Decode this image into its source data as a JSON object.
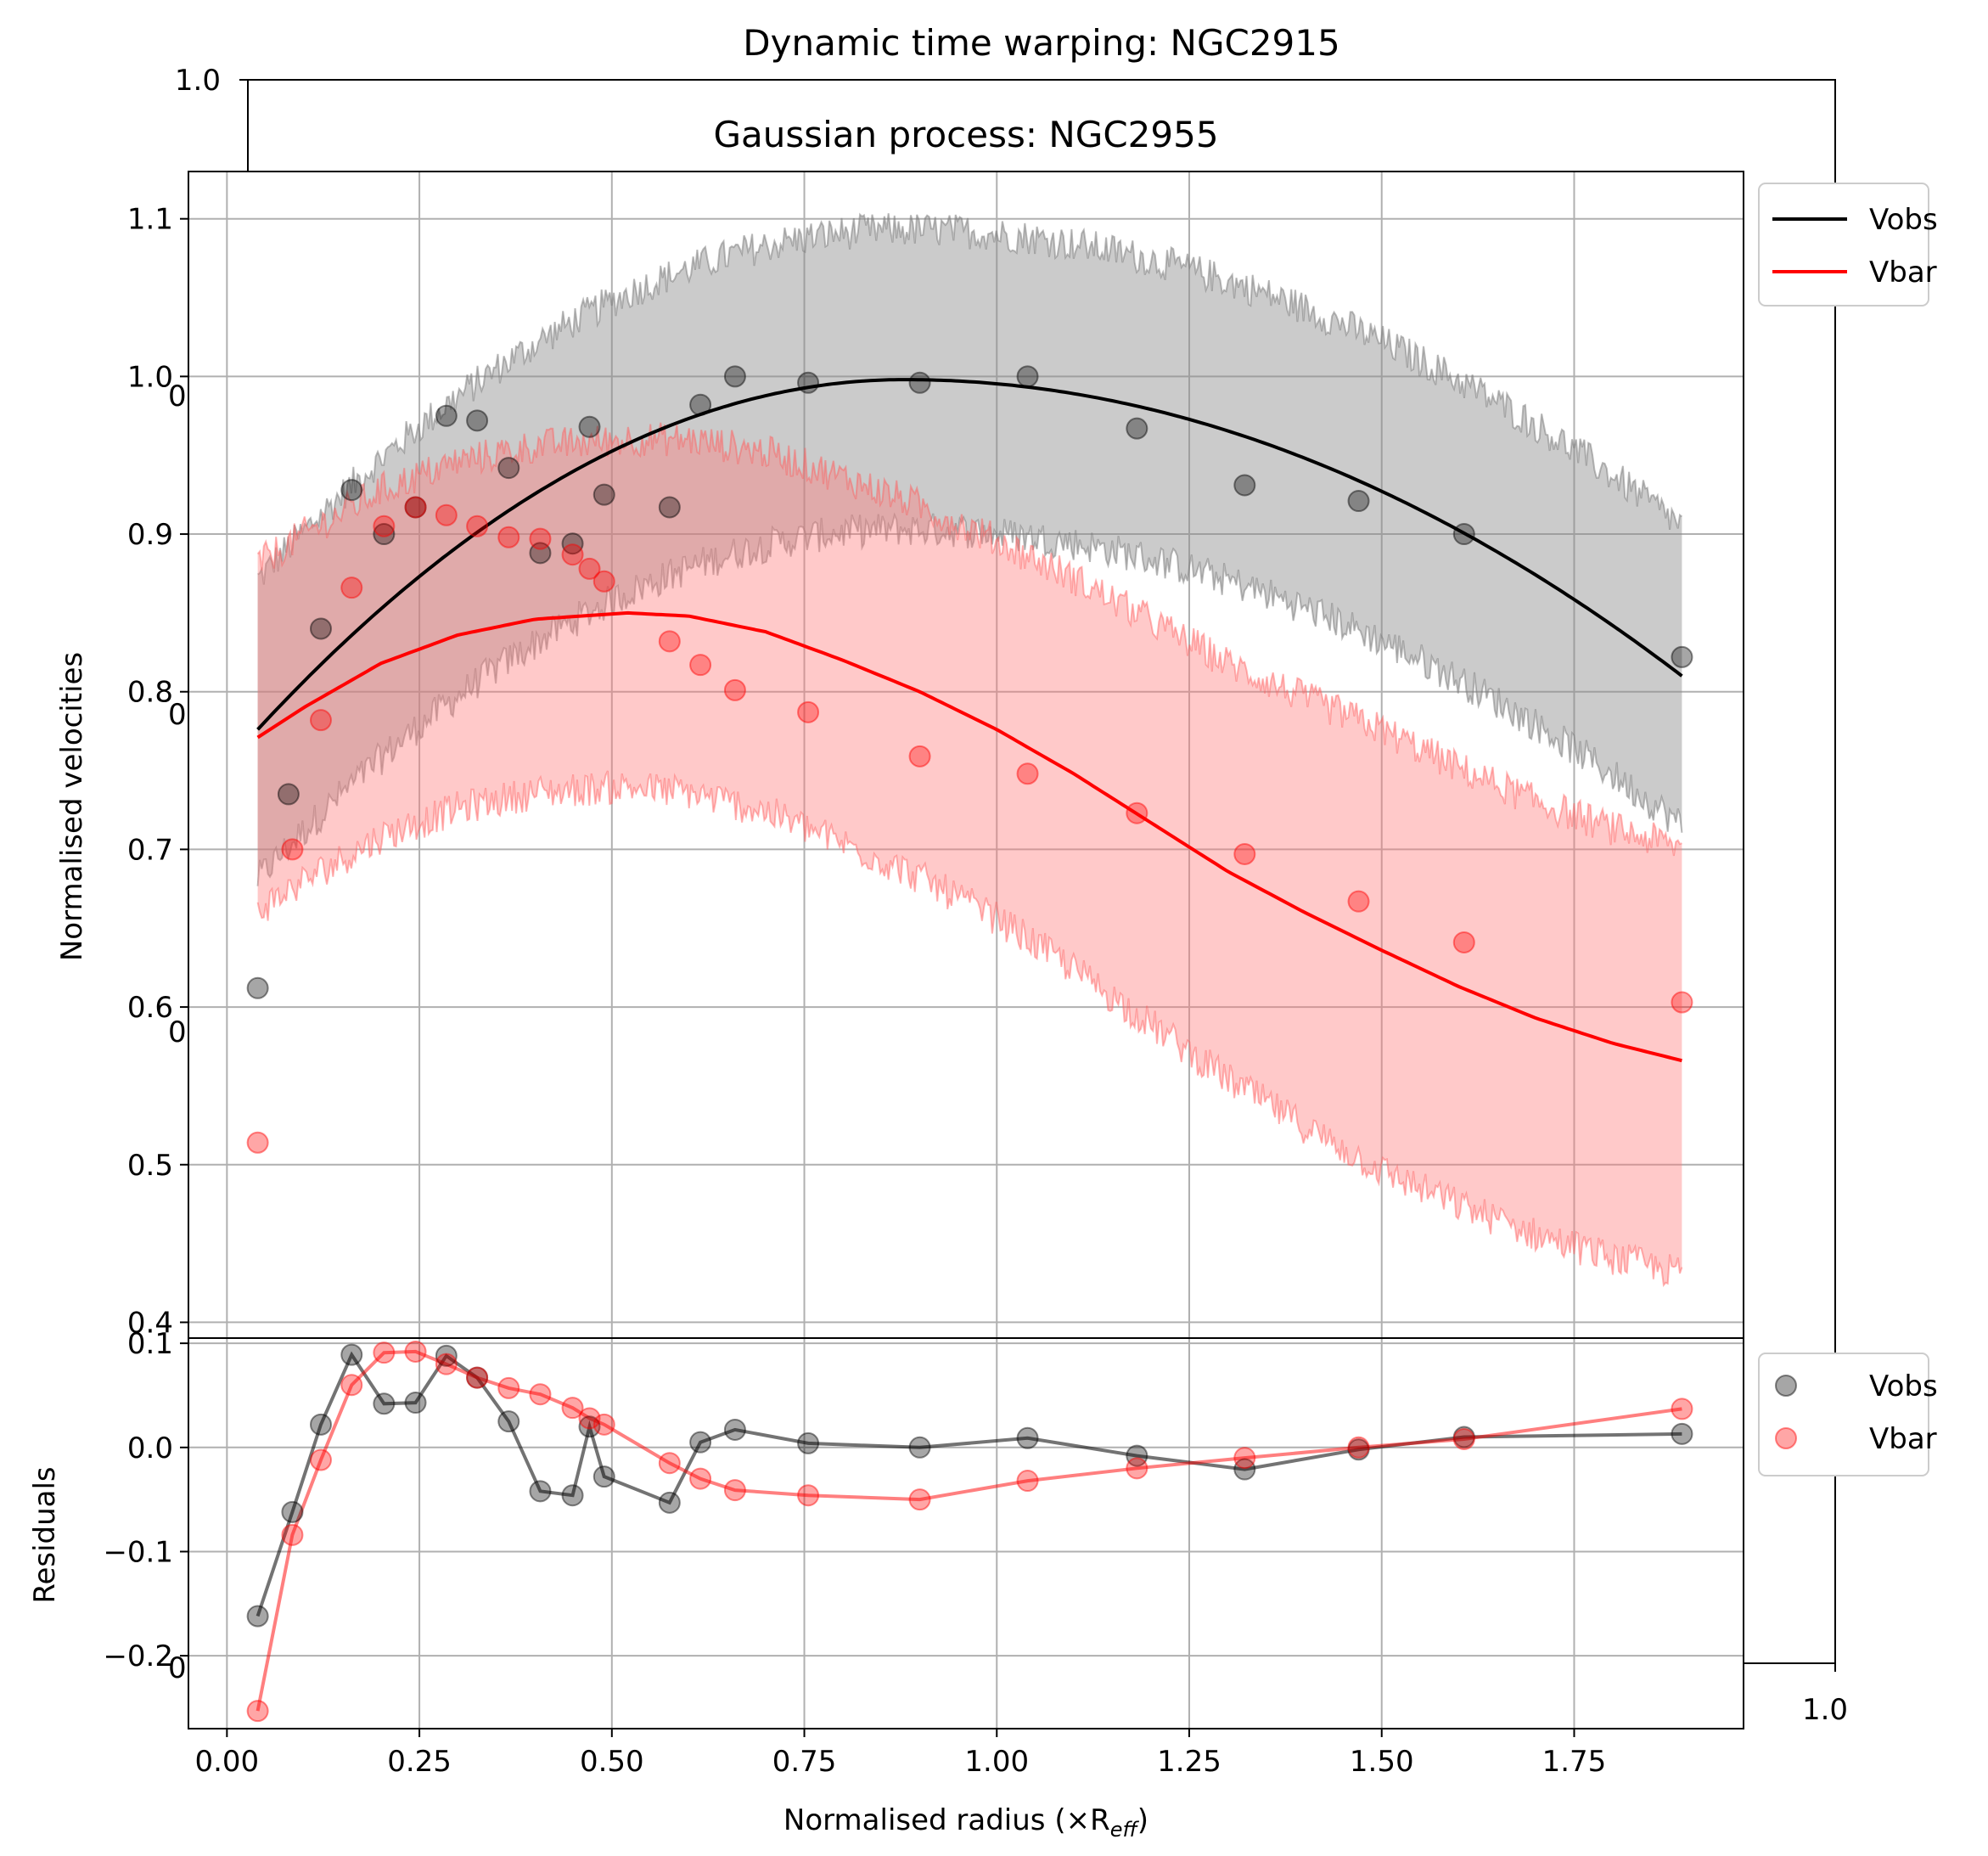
{
  "chart_data": [
    {
      "type": "frame",
      "title": "Dynamic time warping: NGC2915",
      "left_tick_top": "1.0",
      "right_tick_bottom": "1.0",
      "partial_left_ticks": [
        "0",
        "0",
        "0",
        "0"
      ]
    },
    {
      "type": "line",
      "title": "Gaussian process: NGC2955",
      "xlabel": "",
      "ylabel": "Normalised velocities",
      "xlim": [
        -0.05,
        1.97
      ],
      "ylim": [
        0.39,
        1.13
      ],
      "xticks": [
        0.0,
        0.25,
        0.5,
        0.75,
        1.0,
        1.25,
        1.5,
        1.75
      ],
      "yticks": [
        0.4,
        0.5,
        0.6,
        0.7,
        0.8,
        0.9,
        1.0,
        1.1
      ],
      "ytick_labels": [
        "0.4",
        "0.5",
        "0.6",
        "0.7",
        "0.8",
        "0.9",
        "1.0",
        "1.1"
      ],
      "grid": true,
      "legend": {
        "placement": "outside-top-right",
        "entries": [
          "Vobs",
          "Vbar"
        ]
      },
      "colors": {
        "obs": "#000000",
        "bar": "#ff0000",
        "obs_band": "#c9c9c9",
        "bar_band": "#ffc9c9"
      },
      "series": [
        {
          "name": "Vobs",
          "x": [
            0.04,
            0.08,
            0.122,
            0.162,
            0.204,
            0.245,
            0.285,
            0.325,
            0.366,
            0.407,
            0.449,
            0.471,
            0.49,
            0.575,
            0.615,
            0.66,
            0.755,
            0.9,
            1.04,
            1.182,
            1.322,
            1.47,
            1.607,
            1.89
          ],
          "y": [
            0.612,
            0.735,
            0.84,
            0.928,
            0.9,
            0.917,
            0.975,
            0.972,
            0.942,
            0.888,
            0.894,
            0.968,
            0.925,
            0.917,
            0.982,
            1.0,
            0.996,
            0.996,
            1.0,
            0.967,
            0.931,
            0.921,
            0.9,
            0.822
          ],
          "fit": {
            "x0": 0.04,
            "y0": 0.776,
            "xpeak": 0.88,
            "ypeak": 0.998,
            "x1": 1.89,
            "y1": 0.81
          },
          "band_halfwidth": 0.095
        },
        {
          "name": "Vbar",
          "x": [
            0.04,
            0.085,
            0.122,
            0.162,
            0.204,
            0.245,
            0.285,
            0.325,
            0.366,
            0.407,
            0.449,
            0.471,
            0.49,
            0.575,
            0.615,
            0.66,
            0.755,
            0.9,
            1.04,
            1.182,
            1.322,
            1.47,
            1.607,
            1.89
          ],
          "y": [
            0.514,
            0.7,
            0.782,
            0.866,
            0.905,
            0.917,
            0.912,
            0.905,
            0.898,
            0.897,
            0.887,
            0.878,
            0.87,
            0.832,
            0.817,
            0.801,
            0.787,
            0.759,
            0.748,
            0.723,
            0.697,
            0.667,
            0.641,
            0.603
          ],
          "fit": [
            [
              0.04,
              0.771
            ],
            [
              0.1,
              0.79
            ],
            [
              0.2,
              0.818
            ],
            [
              0.3,
              0.836
            ],
            [
              0.4,
              0.846
            ],
            [
              0.52,
              0.85
            ],
            [
              0.6,
              0.848
            ],
            [
              0.7,
              0.838
            ],
            [
              0.8,
              0.82
            ],
            [
              0.9,
              0.8
            ],
            [
              1.0,
              0.776
            ],
            [
              1.1,
              0.748
            ],
            [
              1.2,
              0.717
            ],
            [
              1.3,
              0.686
            ],
            [
              1.4,
              0.66
            ],
            [
              1.5,
              0.636
            ],
            [
              1.6,
              0.613
            ],
            [
              1.7,
              0.593
            ],
            [
              1.8,
              0.577
            ],
            [
              1.89,
              0.566
            ]
          ],
          "band_halfwidth": [
            [
              0.04,
              0.11
            ],
            [
              0.5,
              0.11
            ],
            [
              1.0,
              0.12
            ],
            [
              1.5,
              0.14
            ],
            [
              1.89,
              0.135
            ]
          ]
        }
      ]
    },
    {
      "type": "line",
      "title": "",
      "xlabel": "Normalised radius (×R",
      "xlabel_sub": "eff",
      "xlabel_close": ")",
      "ylabel": "Residuals",
      "xlim": [
        -0.05,
        1.97
      ],
      "ylim": [
        -0.27,
        0.105
      ],
      "xticks": [
        0.0,
        0.25,
        0.5,
        0.75,
        1.0,
        1.25,
        1.5,
        1.75
      ],
      "xtick_labels": [
        "0.00",
        "0.25",
        "0.50",
        "0.75",
        "1.00",
        "1.25",
        "1.50",
        "1.75"
      ],
      "yticks": [
        -0.2,
        -0.1,
        0.0,
        0.1
      ],
      "ytick_labels": [
        "−0.2",
        "−0.1",
        "0.0",
        "0.1"
      ],
      "grid": true,
      "legend": {
        "placement": "outside-top-right",
        "entries": [
          "Vobs",
          "Vbar"
        ]
      },
      "series": [
        {
          "name": "Vobs",
          "x": [
            0.04,
            0.085,
            0.122,
            0.162,
            0.204,
            0.245,
            0.285,
            0.325,
            0.366,
            0.407,
            0.449,
            0.471,
            0.49,
            0.575,
            0.615,
            0.66,
            0.755,
            0.9,
            1.04,
            1.182,
            1.322,
            1.47,
            1.607,
            1.89
          ],
          "y": [
            -0.162,
            -0.062,
            0.022,
            0.089,
            0.042,
            0.043,
            0.088,
            0.067,
            0.025,
            -0.042,
            -0.046,
            0.02,
            -0.028,
            -0.053,
            0.005,
            0.017,
            0.004,
            0.0,
            0.009,
            -0.008,
            -0.021,
            -0.002,
            0.01,
            0.013
          ]
        },
        {
          "name": "Vbar",
          "x": [
            0.04,
            0.085,
            0.122,
            0.162,
            0.204,
            0.245,
            0.285,
            0.325,
            0.366,
            0.407,
            0.449,
            0.471,
            0.49,
            0.575,
            0.615,
            0.66,
            0.755,
            0.9,
            1.04,
            1.182,
            1.322,
            1.47,
            1.607,
            1.89
          ],
          "y": [
            -0.253,
            -0.084,
            -0.012,
            0.06,
            0.091,
            0.092,
            0.08,
            0.067,
            0.057,
            0.051,
            0.038,
            0.028,
            0.022,
            -0.015,
            -0.03,
            -0.041,
            -0.046,
            -0.05,
            -0.032,
            -0.02,
            -0.01,
            0.0,
            0.008,
            0.037
          ]
        }
      ]
    }
  ]
}
